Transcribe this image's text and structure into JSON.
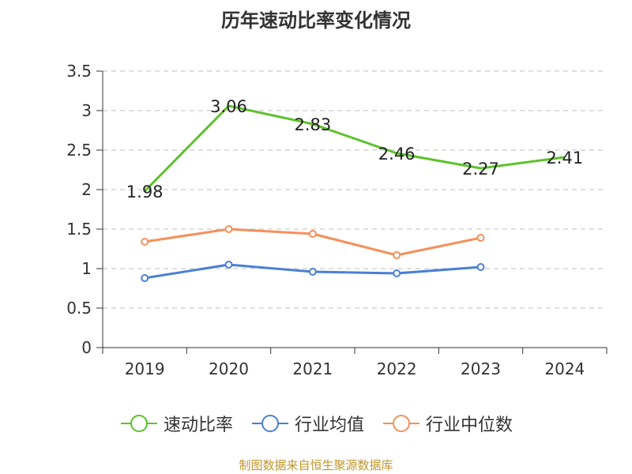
{
  "chart_data": {
    "type": "line",
    "title": "历年速动比率变化情况",
    "categories": [
      "2019",
      "2020",
      "2021",
      "2022",
      "2023",
      "2024"
    ],
    "ylim": [
      0,
      3.5
    ],
    "yticks": [
      "0",
      "0.5",
      "1",
      "1.5",
      "2",
      "2.5",
      "3",
      "3.5"
    ],
    "grid": true,
    "legend_position": "bottom",
    "series": [
      {
        "name": "速动比率",
        "color": "#5cc22a",
        "values": [
          1.98,
          3.06,
          2.83,
          2.46,
          2.27,
          2.41
        ],
        "labels": [
          "1.98",
          "3.06",
          "2.83",
          "2.46",
          "2.27",
          "2.41"
        ]
      },
      {
        "name": "行业均值",
        "color": "#4a7fd6",
        "values": [
          0.88,
          1.05,
          0.96,
          0.94,
          1.02,
          null
        ]
      },
      {
        "name": "行业中位数",
        "color": "#f4905a",
        "values": [
          1.34,
          1.5,
          1.44,
          1.17,
          1.39,
          null
        ]
      }
    ]
  },
  "source": "制图数据来自恒生聚源数据库"
}
